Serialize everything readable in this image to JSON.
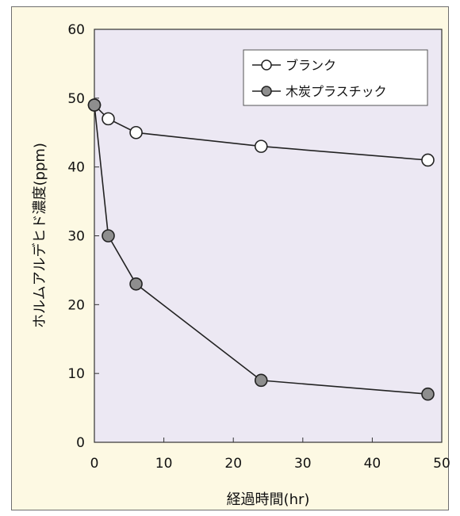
{
  "chart_data": {
    "type": "line",
    "title": "",
    "xlabel": "経過時間(hr)",
    "ylabel": "ホルムアルデヒド濃度(ppm)",
    "xlim": [
      0,
      50
    ],
    "ylim": [
      0,
      60
    ],
    "xticks": [
      0,
      10,
      20,
      30,
      40,
      50
    ],
    "yticks": [
      0,
      10,
      20,
      30,
      40,
      50,
      60
    ],
    "legend_position": "top-right",
    "grid": false,
    "series": [
      {
        "name": "ブランク",
        "marker": "open-circle",
        "marker_color": "#ffffff",
        "points": [
          {
            "x": 0,
            "y": 49
          },
          {
            "x": 2,
            "y": 47
          },
          {
            "x": 6,
            "y": 45
          },
          {
            "x": 24,
            "y": 43
          },
          {
            "x": 48,
            "y": 41
          }
        ]
      },
      {
        "name": "木炭プラスチック",
        "marker": "filled-circle",
        "marker_color": "#8e8e8e",
        "points": [
          {
            "x": 0,
            "y": 49
          },
          {
            "x": 2,
            "y": 30
          },
          {
            "x": 6,
            "y": 23
          },
          {
            "x": 24,
            "y": 9
          },
          {
            "x": 48,
            "y": 7
          }
        ]
      }
    ]
  },
  "colors": {
    "background": "#fdf9e3",
    "plot_area": "#ece8f3",
    "line": "#222222"
  }
}
